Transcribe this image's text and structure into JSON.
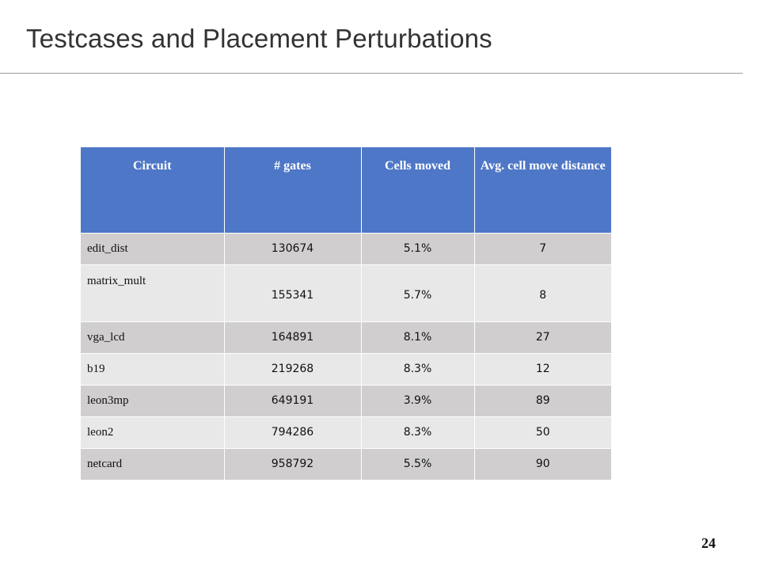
{
  "slide": {
    "title": "Testcases and Placement Perturbations",
    "page_number": "24"
  },
  "table": {
    "headers": [
      "Circuit",
      "# gates",
      "Cells moved",
      "Avg. cell move distance"
    ],
    "rows": [
      [
        "edit_dist",
        "130674",
        "5.1%",
        "7"
      ],
      [
        "matrix_mult",
        "155341",
        "5.7%",
        "8"
      ],
      [
        "vga_lcd",
        "164891",
        "8.1%",
        "27"
      ],
      [
        "b19",
        "219268",
        "8.3%",
        "12"
      ],
      [
        "leon3mp",
        "649191",
        "3.9%",
        "89"
      ],
      [
        "leon2",
        "794286",
        "8.3%",
        "50"
      ],
      [
        "netcard",
        "958792",
        "5.5%",
        "90"
      ]
    ]
  },
  "colors": {
    "header_bg": "#4f77c7",
    "row_dark": "#d0cece",
    "row_light": "#e9e8e8"
  }
}
